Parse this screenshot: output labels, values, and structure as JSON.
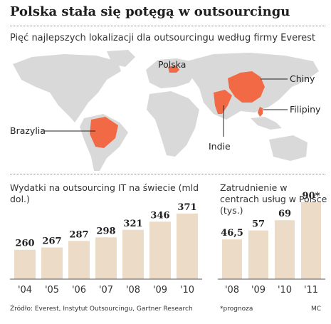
{
  "page": {
    "title": "Polska stała się potęgą w outsourcingu",
    "subtitle": "Pięć najlepszych lokalizacji dla outsourcingu według firmy Everest"
  },
  "map": {
    "locations": [
      "Polska",
      "Chiny",
      "Filipiny",
      "Indie",
      "Brazylia"
    ],
    "highlight_color": "#f26a45",
    "land_color": "#d9d9d9"
  },
  "chart_data": [
    {
      "type": "bar",
      "title": "Wydatki na outsourcing IT na świecie (mld dol.)",
      "categories": [
        "'04",
        "'05",
        "'06",
        "'07",
        "'08",
        "'09",
        "'10"
      ],
      "values": [
        260,
        267,
        287,
        298,
        321,
        346,
        371
      ],
      "value_labels": [
        "260",
        "267",
        "287",
        "298",
        "321",
        "346",
        "371"
      ],
      "forecast": [
        false,
        false,
        false,
        false,
        false,
        false,
        false
      ],
      "bar_color": "#ecdcc7",
      "ylim": [
        170,
        375
      ],
      "grid": false
    },
    {
      "type": "bar",
      "title": "Zatrudnienie w centrach usług w Polsce (tys.)",
      "categories": [
        "'08",
        "'09",
        "'10",
        "'11"
      ],
      "values": [
        46.5,
        57,
        69,
        90
      ],
      "value_labels": [
        "46,5",
        "57",
        "69",
        "90"
      ],
      "forecast": [
        false,
        false,
        false,
        true
      ],
      "bar_color": "#ecdcc7",
      "ylim": [
        0,
        90
      ],
      "grid": false
    }
  ],
  "footer": {
    "source": "Źródło: Everest, Instytut Outsourcingu, Gartner Research",
    "note": "*prognoza",
    "credit": "MC"
  }
}
